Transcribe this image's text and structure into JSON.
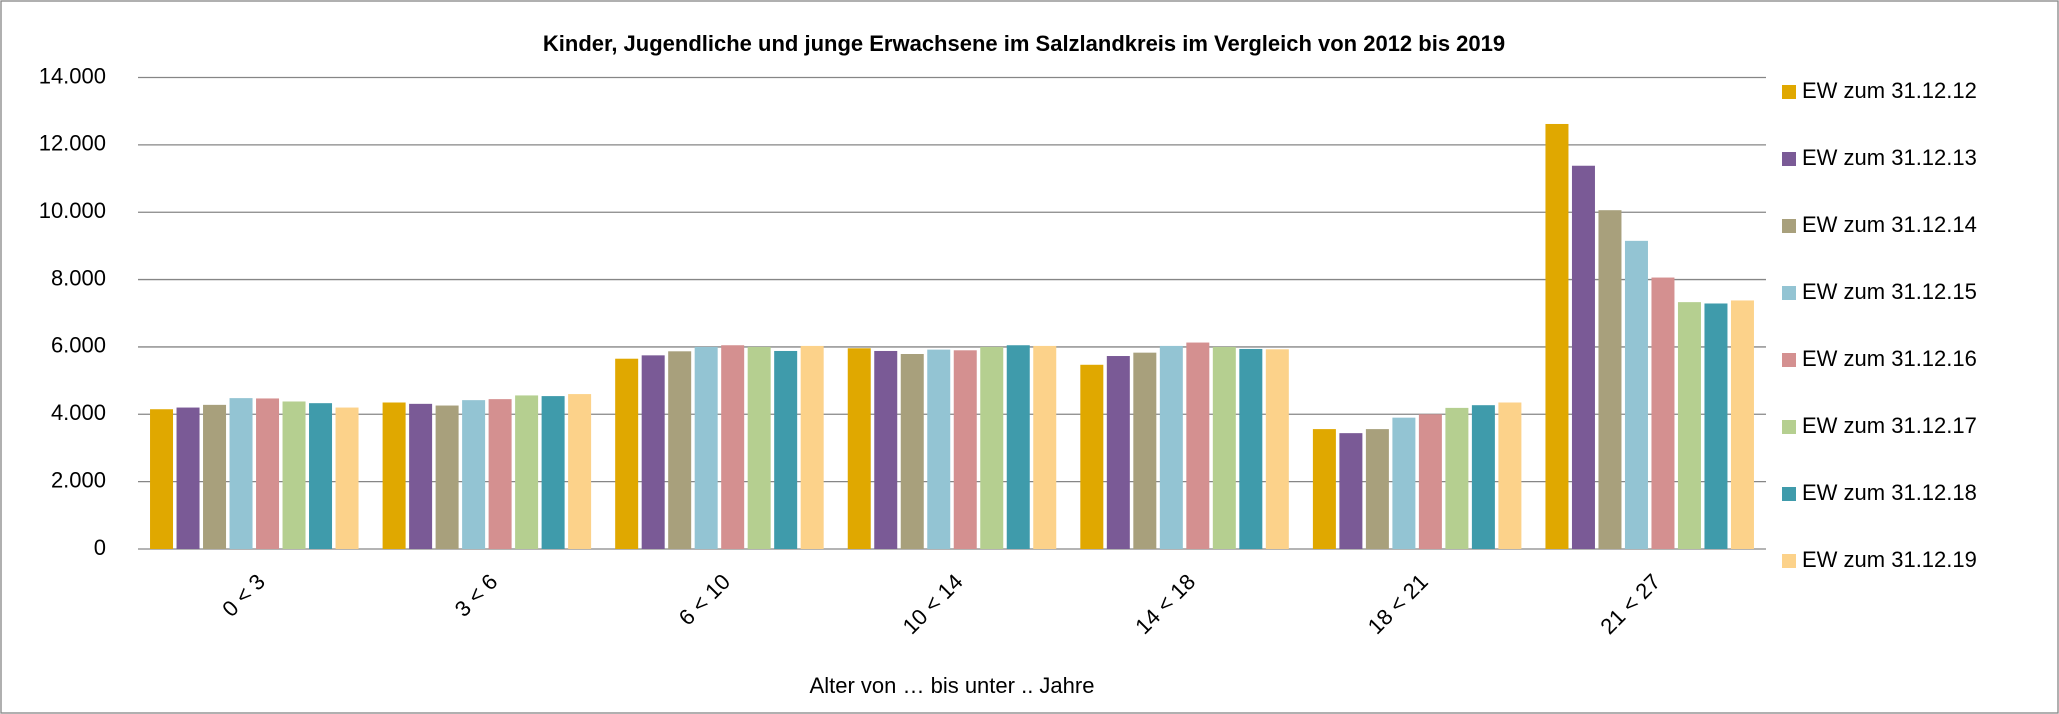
{
  "chart_data": {
    "type": "bar",
    "title": "Kinder, Jugendliche und junge Erwachsene im Salzlandkreis  im Vergleich von 2012 bis 2019",
    "x_label": "Alter von … bis unter .. Jahre",
    "categories": [
      "0 < 3",
      "3 < 6",
      "6 < 10",
      "10 < 14",
      "14 < 18",
      "18 < 21",
      "21 < 27"
    ],
    "series": [
      {
        "name": "EW zum 31.12.12",
        "color": "#e0a800",
        "values": [
          4150,
          4350,
          5650,
          5960,
          5470,
          3560,
          12620
        ]
      },
      {
        "name": "EW zum 31.12.13",
        "color": "#7a5a96",
        "values": [
          4200,
          4310,
          5750,
          5880,
          5730,
          3440,
          11380
        ]
      },
      {
        "name": "EW zum 31.12.14",
        "color": "#a8a07c",
        "values": [
          4280,
          4260,
          5870,
          5790,
          5830,
          3560,
          10060
        ]
      },
      {
        "name": "EW zum 31.12.15",
        "color": "#93c4d3",
        "values": [
          4480,
          4420,
          6000,
          5920,
          6030,
          3900,
          9150
        ]
      },
      {
        "name": "EW zum 31.12.16",
        "color": "#d49090",
        "values": [
          4470,
          4450,
          6050,
          5900,
          6130,
          4000,
          8060
        ]
      },
      {
        "name": "EW zum 31.12.17",
        "color": "#b5cf90",
        "values": [
          4380,
          4560,
          6000,
          6000,
          6000,
          4190,
          7330
        ]
      },
      {
        "name": "EW zum 31.12.18",
        "color": "#3f9bab",
        "values": [
          4330,
          4540,
          5880,
          6050,
          5940,
          4270,
          7290
        ]
      },
      {
        "name": "EW zum 31.12.19",
        "color": "#fcd28a",
        "values": [
          4200,
          4600,
          6030,
          6030,
          5930,
          4350,
          7380
        ]
      }
    ],
    "ylim": [
      0,
      14000
    ],
    "yticks": [
      0,
      {
        "value": 2000,
        "label": "2.000"
      },
      {
        "value": 4000,
        "label": "4.000"
      },
      {
        "value": 6000,
        "label": "6.000"
      },
      {
        "value": 8000,
        "label": "8.000"
      },
      {
        "value": 10000,
        "label": "10.000"
      },
      {
        "value": 12000,
        "label": "12.000"
      },
      {
        "value": 14000,
        "label": "14.000"
      }
    ],
    "grid": true,
    "legend": "right"
  }
}
